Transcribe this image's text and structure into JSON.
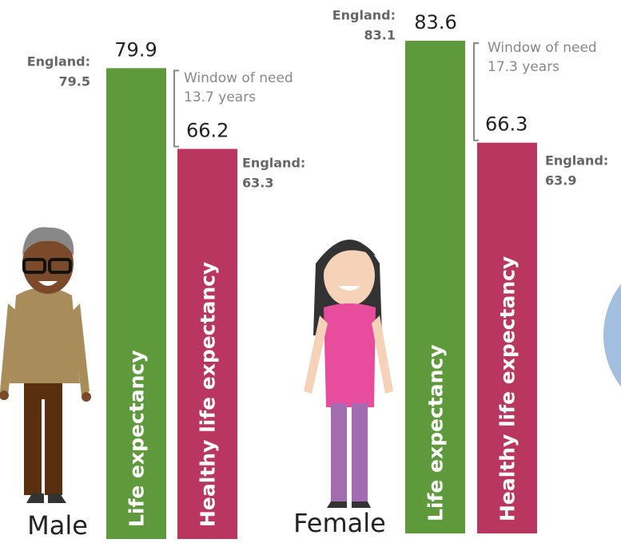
{
  "chart_data": {
    "type": "bar",
    "categories": [
      "Male",
      "Female"
    ],
    "series": [
      {
        "name": "Life expectancy",
        "color": "#5e9a3c",
        "values": [
          79.9,
          83.6
        ],
        "england": [
          79.5,
          83.1
        ]
      },
      {
        "name": "Healthy life expectancy",
        "color": "#b8365f",
        "values": [
          66.2,
          66.3
        ],
        "england": [
          63.3,
          63.9
        ]
      }
    ],
    "england_label": "England:",
    "window": {
      "label": "Window of need",
      "values": [
        13.7,
        17.3
      ],
      "value_labels": [
        "13.7 years",
        "17.3 years"
      ]
    }
  }
}
